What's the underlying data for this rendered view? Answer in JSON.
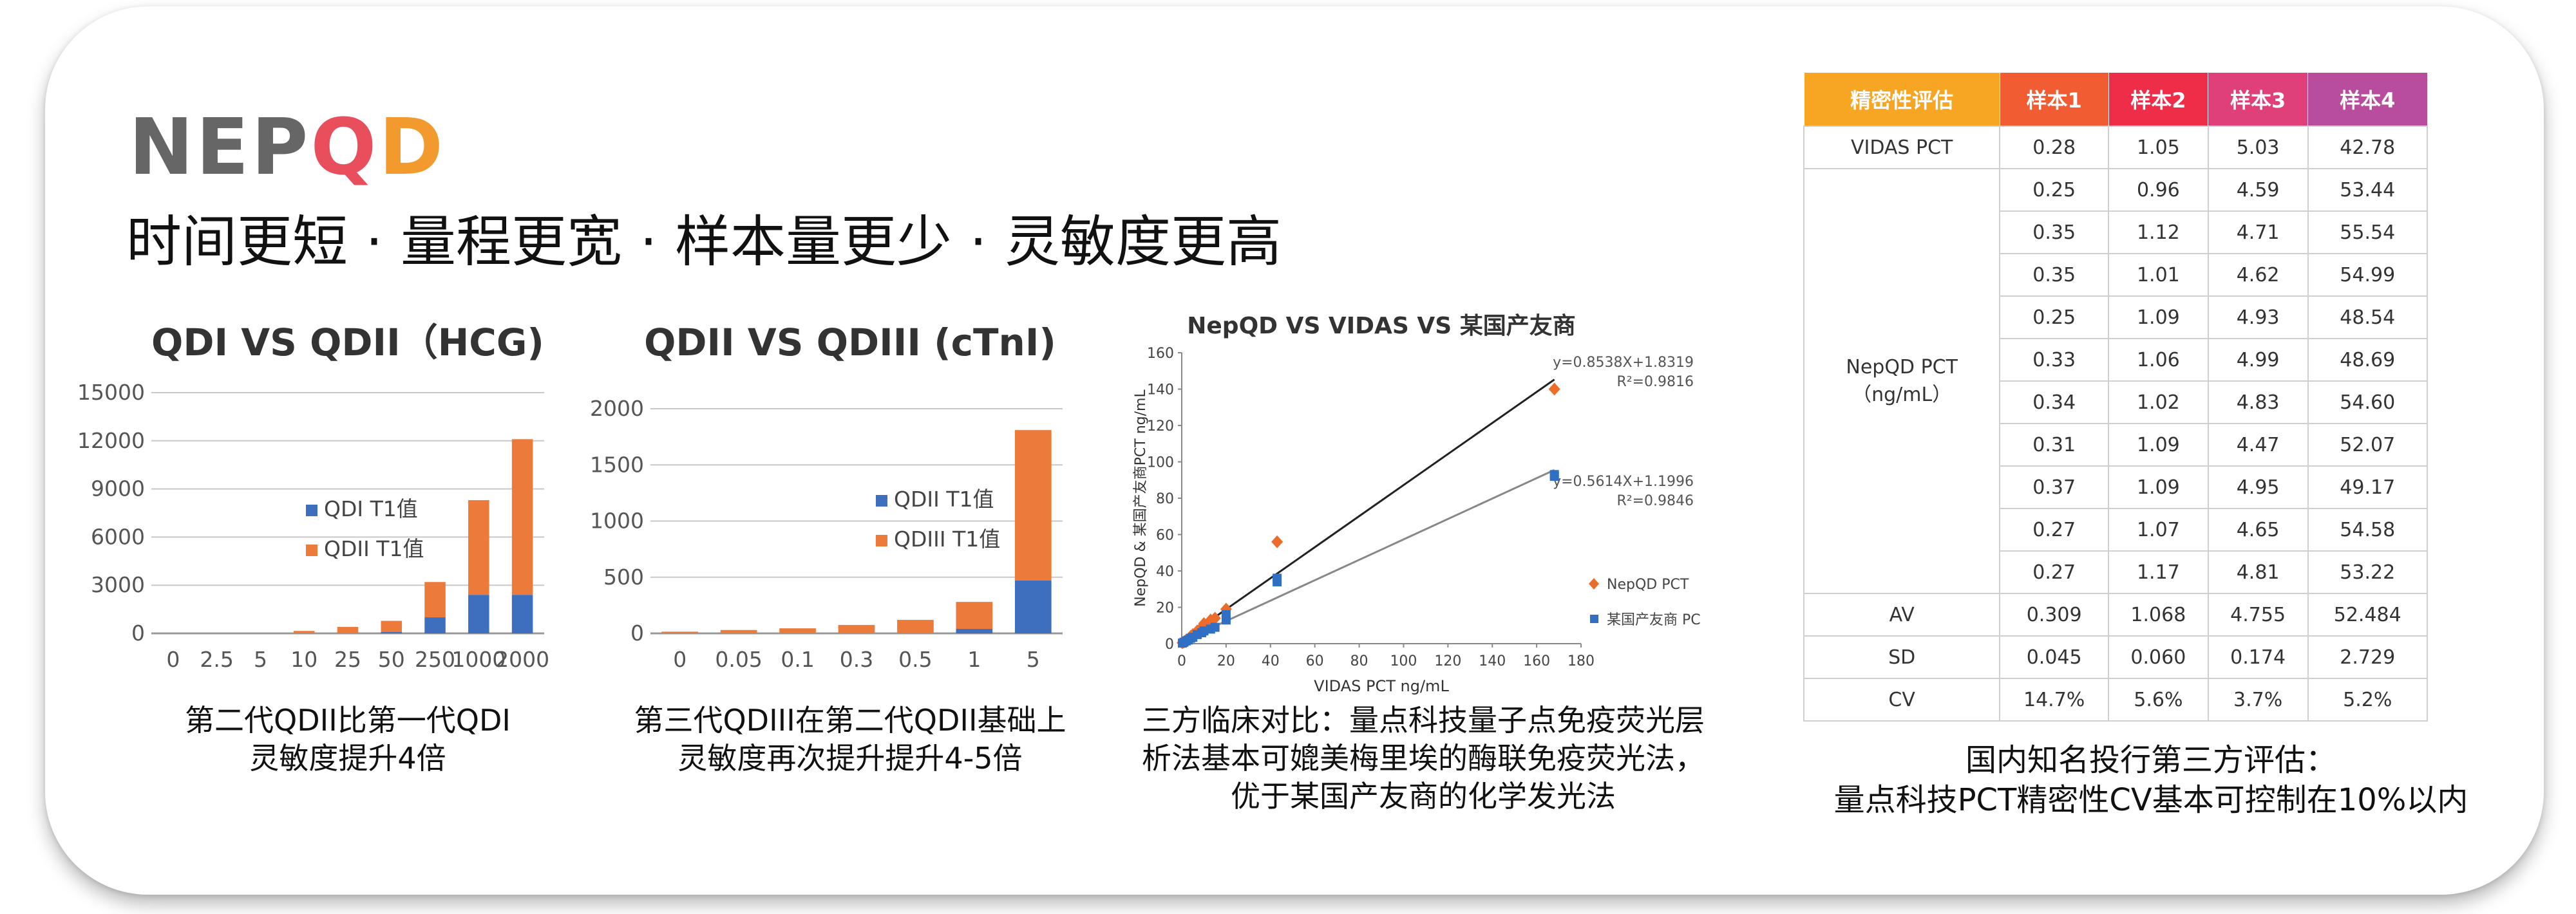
{
  "logo": {
    "part1": "NEP",
    "part2": "Q",
    "part3": "D"
  },
  "tagline": "时间更短 · 量程更宽 · 样本量更少 · 灵敏度更高",
  "colors": {
    "blue": "#3e6fbf",
    "orange": "#ec7a3b",
    "diamond": "#ec6c2a",
    "square": "#2f6fc4"
  },
  "chart_data": [
    {
      "type": "bar",
      "stacked": true,
      "title": "QDI VS QDII（HCG)",
      "categories": [
        "0",
        "2.5",
        "5",
        "10",
        "25",
        "50",
        "250",
        "1000",
        "2000"
      ],
      "series": [
        {
          "name": "QDI T1值",
          "values": [
            0,
            0,
            0,
            0,
            0,
            80,
            1000,
            2400,
            2400
          ]
        },
        {
          "name": "QDII T1值",
          "values": [
            0,
            0,
            0,
            150,
            400,
            700,
            2200,
            5900,
            9700
          ]
        }
      ],
      "yticks": [
        "0",
        "3000",
        "6000",
        "9000",
        "12000",
        "15000"
      ],
      "ylim": [
        0,
        15000
      ],
      "grid": true,
      "legend": "center-right"
    },
    {
      "type": "bar",
      "stacked": true,
      "title": "QDII VS QDIII (cTnI)",
      "categories": [
        "0",
        "0.05",
        "0.1",
        "0.3",
        "0.5",
        "1",
        "5"
      ],
      "series": [
        {
          "name": "QDII T1值",
          "values": [
            0,
            0,
            0,
            0,
            0,
            40,
            470
          ]
        },
        {
          "name": "QDIII T1值",
          "values": [
            15,
            30,
            45,
            75,
            120,
            240,
            1340
          ]
        }
      ],
      "yticks": [
        "0",
        "500",
        "1000",
        "1500",
        "2000"
      ],
      "ylim": [
        0,
        2000
      ],
      "grid": true,
      "legend": "center-right"
    },
    {
      "type": "scatter",
      "title": "NepQD VS VIDAS VS 某国产友商",
      "xlabel": "VIDAS PCT ng/mL",
      "ylabel": "NepQD & 某国产友商PCT ng/mL",
      "xlim": [
        0,
        180
      ],
      "ylim": [
        0,
        160
      ],
      "xticks": [
        "0",
        "20",
        "40",
        "60",
        "80",
        "100",
        "120",
        "140",
        "160",
        "180"
      ],
      "yticks": [
        "0",
        "20",
        "40",
        "60",
        "80",
        "100",
        "120",
        "140",
        "160"
      ],
      "series": [
        {
          "name": "NepQD PCT",
          "marker": "diamond",
          "points": [
            [
              0.3,
              0.5
            ],
            [
              1,
              1
            ],
            [
              2,
              2
            ],
            [
              3,
              2.5
            ],
            [
              4,
              4
            ],
            [
              5,
              5
            ],
            [
              7,
              7
            ],
            [
              9,
              9
            ],
            [
              10,
              11
            ],
            [
              13,
              13
            ],
            [
              15,
              14
            ],
            [
              20,
              19
            ],
            [
              43,
              56
            ],
            [
              168,
              140
            ]
          ],
          "fit": {
            "slope": 0.8538,
            "intercept": 1.8319,
            "label": "y=0.8538X+1.8319",
            "r2": "R²=0.9816"
          }
        },
        {
          "name": "某国产友商 PCT",
          "marker": "square",
          "points": [
            [
              0.3,
              0.3
            ],
            [
              1,
              0.8
            ],
            [
              2,
              1.5
            ],
            [
              3,
              2
            ],
            [
              4,
              3
            ],
            [
              5,
              3.5
            ],
            [
              7,
              5
            ],
            [
              9,
              6
            ],
            [
              10,
              7
            ],
            [
              13,
              8
            ],
            [
              15,
              9
            ],
            [
              20,
              13
            ],
            [
              20,
              16
            ],
            [
              43,
              34
            ],
            [
              43,
              36
            ],
            [
              168,
              93
            ],
            [
              168,
              92
            ]
          ],
          "fit": {
            "slope": 0.5614,
            "intercept": 1.1996,
            "label": "y=0.5614X+1.1996",
            "r2": "R²=0.9846"
          }
        }
      ],
      "legend": "right"
    }
  ],
  "captions": {
    "c1": [
      "第二代QDII比第一代QDI",
      "灵敏度提升4倍"
    ],
    "c2": [
      "第三代QDIII在第二代QDII基础上",
      "灵敏度再次提升提升4-5倍"
    ],
    "c3": [
      "三方临床对比：量点科技量子点免疫荧光层",
      "析法基本可媲美梅里埃的酶联免疫荧光法，",
      "优于某国产友商的化学发光法"
    ]
  },
  "table": {
    "headers": [
      "精密性评估",
      "样本1",
      "样本2",
      "样本3",
      "样本4"
    ],
    "header_colors": [
      "#f6a623",
      "#f25c32",
      "#ee2e48",
      "#e0407a",
      "#b84d9e"
    ],
    "vidas": {
      "label": "VIDAS PCT",
      "values": [
        "0.28",
        "1.05",
        "5.03",
        "42.78"
      ]
    },
    "nepqd_label": [
      "NepQD PCT",
      "（ng/mL）"
    ],
    "nepqd_rows": [
      [
        "0.25",
        "0.96",
        "4.59",
        "53.44"
      ],
      [
        "0.35",
        "1.12",
        "4.71",
        "55.54"
      ],
      [
        "0.35",
        "1.01",
        "4.62",
        "54.99"
      ],
      [
        "0.25",
        "1.09",
        "4.93",
        "48.54"
      ],
      [
        "0.33",
        "1.06",
        "4.99",
        "48.69"
      ],
      [
        "0.34",
        "1.02",
        "4.83",
        "54.60"
      ],
      [
        "0.31",
        "1.09",
        "4.47",
        "52.07"
      ],
      [
        "0.37",
        "1.09",
        "4.95",
        "49.17"
      ],
      [
        "0.27",
        "1.07",
        "4.65",
        "54.58"
      ],
      [
        "0.27",
        "1.17",
        "4.81",
        "53.22"
      ]
    ],
    "stats": [
      {
        "label": "AV",
        "values": [
          "0.309",
          "1.068",
          "4.755",
          "52.484"
        ]
      },
      {
        "label": "SD",
        "values": [
          "0.045",
          "0.060",
          "0.174",
          "2.729"
        ]
      },
      {
        "label": "CV",
        "values": [
          "14.7%",
          "5.6%",
          "3.7%",
          "5.2%"
        ]
      }
    ]
  },
  "note": [
    "国内知名投行第三方评估：",
    "量点科技PCT精密性CV基本可控制在10%以内"
  ]
}
